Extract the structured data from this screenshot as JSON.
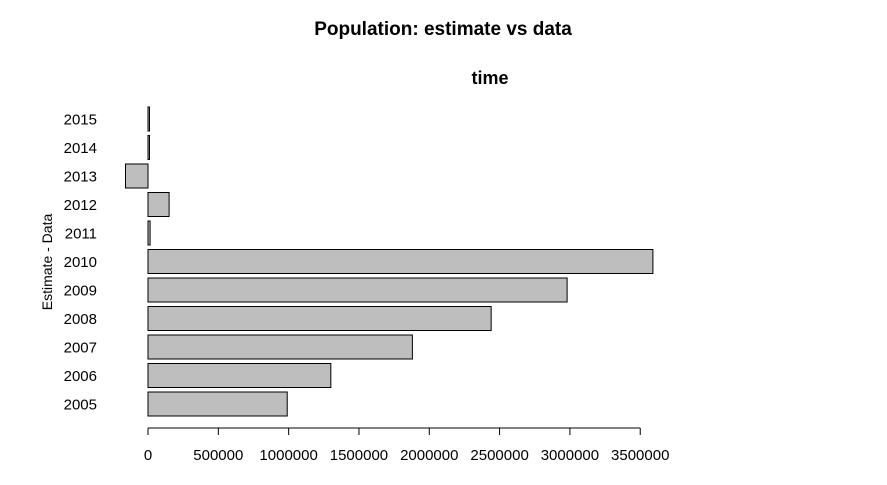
{
  "chart_data": {
    "type": "bar",
    "orientation": "horizontal",
    "title": "Population: estimate vs data",
    "subtitle": "time",
    "xlabel": "",
    "ylabel": "Estimate - Data",
    "categories": [
      "2005",
      "2006",
      "2007",
      "2008",
      "2009",
      "2010",
      "2011",
      "2012",
      "2013",
      "2014",
      "2015"
    ],
    "values": [
      990000,
      1300000,
      1880000,
      2440000,
      2980000,
      3590000,
      15000,
      150000,
      -160000,
      5000,
      10000
    ],
    "xlim": [
      -160000,
      3590000
    ],
    "x_ticks": [
      0,
      500000,
      1000000,
      1500000,
      2000000,
      2500000,
      3000000,
      3500000
    ],
    "x_tick_labels": [
      "0",
      "500000",
      "1000000",
      "1500000",
      "2000000",
      "2500000",
      "3000000",
      "3500000"
    ],
    "bar_fill": "#bebebe",
    "bar_stroke": "#000000",
    "grid": false,
    "legend": "none"
  }
}
